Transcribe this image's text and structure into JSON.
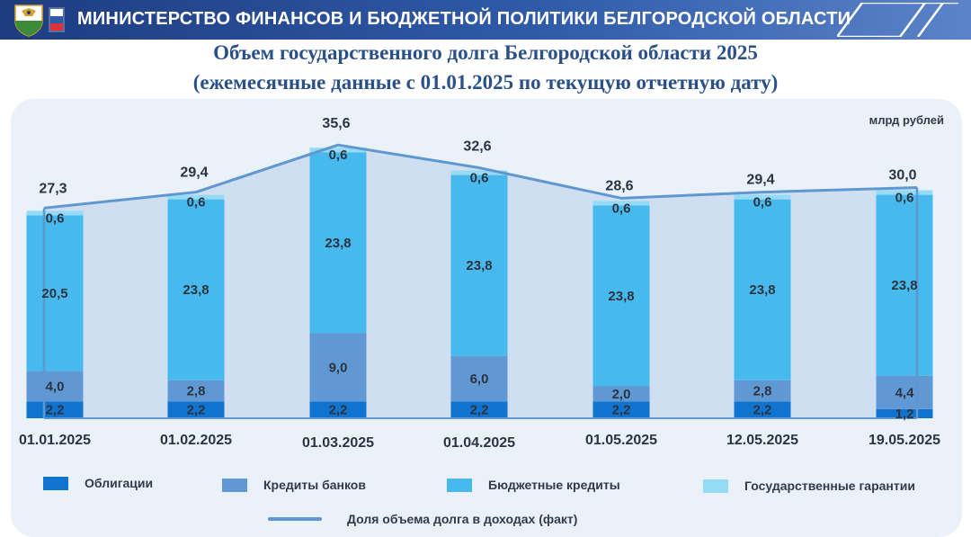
{
  "header": {
    "title": "МИНИСТЕРСТВО ФИНАНСОВ И БЮДЖЕТНОЙ ПОЛИТИКИ БЕЛГОРОДСКОЙ ОБЛАСТИ",
    "emblem_icon": "belgorod-coat-of-arms-icon",
    "decoration_icon": "diagonal-stripes-icon",
    "colors": {
      "bar_start": "#1e3c80",
      "bar_end": "#5b83c9"
    }
  },
  "chart_data": {
    "type": "bar",
    "stacked": true,
    "title": "Объем государственного долга Белгородской области 2025",
    "subtitle": "(ежемесячные данные с 01.01.2025 по текущую отчетную дату)",
    "unit": "млрд рублей",
    "categories": [
      "01.01.2025",
      "01.02.2025",
      "01.03.2025",
      "01.04.2025",
      "01.05.2025",
      "12.05.2025",
      "19.05.2025"
    ],
    "series": [
      {
        "name": "Облигации",
        "color": "#0f73cf",
        "values": [
          2.2,
          2.2,
          2.2,
          2.2,
          2.2,
          2.2,
          1.2
        ],
        "labels": [
          "2,2",
          "2,2",
          "2,2",
          "2,2",
          "2,2",
          "2,2",
          "1,2"
        ]
      },
      {
        "name": "Кредиты банков",
        "color": "#5f98d2",
        "values": [
          4.0,
          2.8,
          9.0,
          6.0,
          2.0,
          2.8,
          4.4
        ],
        "labels": [
          "4,0",
          "2,8",
          "9,0",
          "6,0",
          "2,0",
          "2,8",
          "4,4"
        ]
      },
      {
        "name": "Бюджетные кредиты",
        "color": "#47b9ec",
        "values": [
          20.5,
          23.8,
          23.8,
          23.8,
          23.8,
          23.8,
          23.8
        ],
        "labels": [
          "20,5",
          "23,8",
          "23,8",
          "23,8",
          "23,8",
          "23,8",
          "23,8"
        ]
      },
      {
        "name": "Государственные гарантии",
        "color": "#96dbf6",
        "values": [
          0.6,
          0.6,
          0.6,
          0.6,
          0.6,
          0.6,
          0.6
        ],
        "labels": [
          "0,6",
          "0,6",
          "0,6",
          "0,6",
          "0,6",
          "0,6",
          "0,6"
        ]
      }
    ],
    "totals": [
      27.3,
      29.4,
      35.6,
      32.6,
      28.6,
      29.4,
      30.0
    ],
    "total_labels": [
      "27,3",
      "29,4",
      "35,6",
      "32,6",
      "28,6",
      "29,4",
      "30,0"
    ],
    "line_series": {
      "name": "Доля объема долга в доходах (факт)",
      "color": "#5f97d0"
    },
    "legend": "bottom",
    "grid": false,
    "ylim": [
      0,
      36
    ]
  }
}
